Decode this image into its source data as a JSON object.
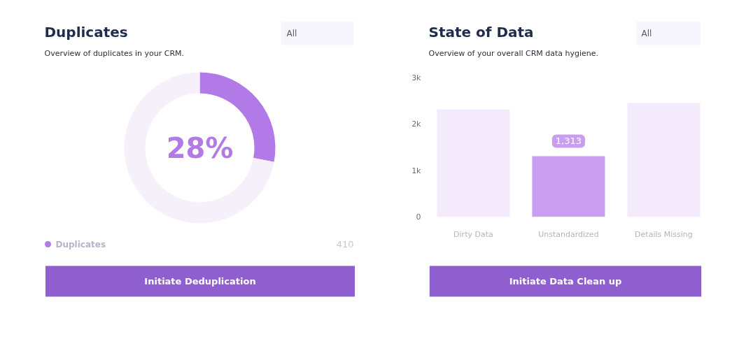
{
  "chart_data": [
    {
      "type": "donut",
      "title": "Duplicates",
      "subtitle": "Overview of duplicates in your CRM.",
      "categories": [
        "Duplicates",
        null
      ],
      "values": [
        28,
        72
      ],
      "colors": [
        "#b27ae6",
        "#f6f0fb"
      ],
      "legend": "bottom",
      "annotations": [
        "28%",
        "410",
        "All",
        "Initiate Deduplication"
      ]
    },
    {
      "type": "bar",
      "title": "State of Data",
      "subtitle": "Overview of your overall CRM data hygiene.",
      "categories": [
        "Dirty Data",
        "Unstandardized",
        "Details Missing"
      ],
      "values": [
        2320,
        1313,
        2460
      ],
      "colors": [
        "#f3ebfc",
        "#c99eee",
        "#f3ebfc"
      ],
      "value_labels": [
        null,
        "1,313",
        null
      ],
      "ylim": [
        0,
        3000
      ],
      "yticks": [
        0,
        {
          "value": 1000,
          "label": "1k"
        },
        {
          "value": 2000,
          "label": "2k"
        },
        {
          "value": 3000,
          "label": "3k"
        }
      ],
      "annotations": [
        "All",
        "Initiate Data Clean up"
      ]
    }
  ]
}
